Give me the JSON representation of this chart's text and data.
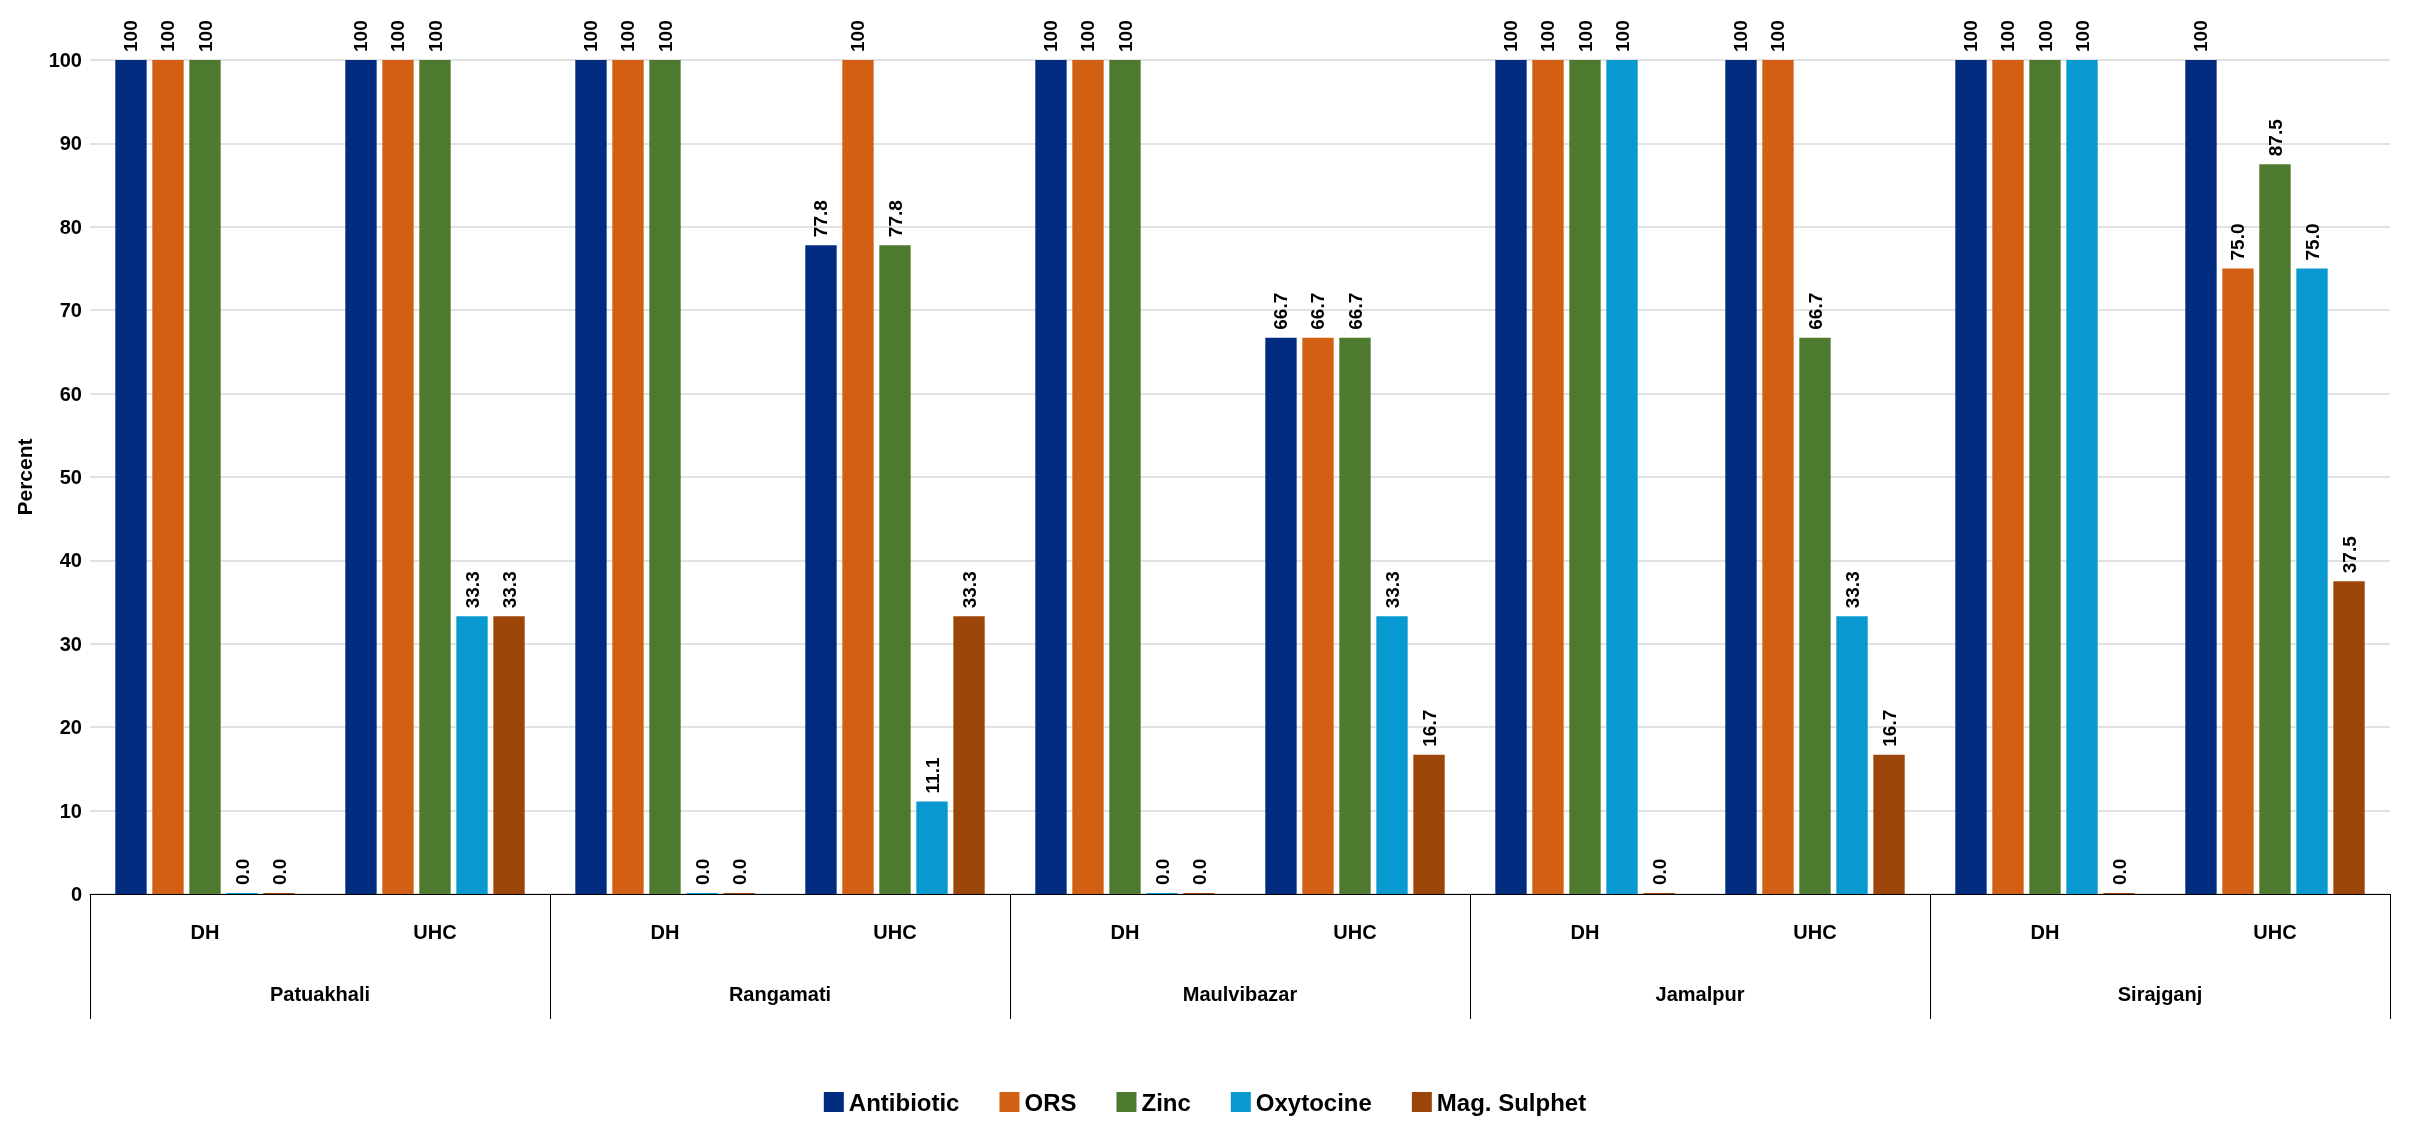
{
  "chart_data": {
    "type": "bar",
    "ylabel": "Percent",
    "categories": [
      "DH",
      "UHC",
      "DH",
      "UHC",
      "DH",
      "UHC",
      "DH",
      "UHC",
      "DH",
      "UHC"
    ],
    "annotations": [
      "Patuakhali",
      "Rangamati",
      "Maulvibazar",
      "Jamalpur",
      "Sirajganj"
    ],
    "series": [
      {
        "name": "Antibiotic",
        "color": "#002b7f",
        "values": [
          100,
          100,
          100,
          77.8,
          100,
          66.7,
          100,
          100,
          100,
          100
        ],
        "value_labels": [
          "100",
          "100",
          "100",
          "77.8",
          "100",
          "66.7",
          "100",
          "100",
          "100",
          "100"
        ]
      },
      {
        "name": "ORS",
        "color": "#d35f14",
        "values": [
          100,
          100,
          100,
          100,
          100,
          66.7,
          100,
          100,
          100,
          75.0
        ],
        "value_labels": [
          "100",
          "100",
          "100",
          "100",
          "100",
          "66.7",
          "100",
          "100",
          "100",
          "75.0"
        ]
      },
      {
        "name": "Zinc",
        "color": "#4e7a2f",
        "values": [
          100,
          100,
          100,
          77.8,
          100,
          66.7,
          100,
          66.7,
          100,
          87.5
        ],
        "value_labels": [
          "100",
          "100",
          "100",
          "77.8",
          "100",
          "66.7",
          "100",
          "66.7",
          "100",
          "87.5"
        ]
      },
      {
        "name": "Oxytocine",
        "color": "#0899d0",
        "values": [
          0,
          33.3,
          0,
          11.1,
          0,
          33.3,
          100,
          33.3,
          100,
          75.0
        ],
        "value_labels": [
          "0.0",
          "33.3",
          "0.0",
          "11.1",
          "0.0",
          "33.3",
          "100",
          "33.3",
          "100",
          "75.0"
        ]
      },
      {
        "name": "Mag. Sulphet",
        "color": "#9c4509",
        "values": [
          0,
          33.3,
          0,
          33.3,
          0,
          16.7,
          0,
          16.7,
          0,
          37.5
        ],
        "value_labels": [
          "0.0",
          "33.3",
          "0.0",
          "33.3",
          "0.0",
          "16.7",
          "0.0",
          "16.7",
          "0.0",
          "37.5"
        ]
      }
    ],
    "ylim": [
      0,
      100
    ],
    "yticks": [
      0,
      10,
      20,
      30,
      40,
      50,
      60,
      70,
      80,
      90,
      100
    ],
    "grid": "y",
    "legend": "bottom"
  }
}
